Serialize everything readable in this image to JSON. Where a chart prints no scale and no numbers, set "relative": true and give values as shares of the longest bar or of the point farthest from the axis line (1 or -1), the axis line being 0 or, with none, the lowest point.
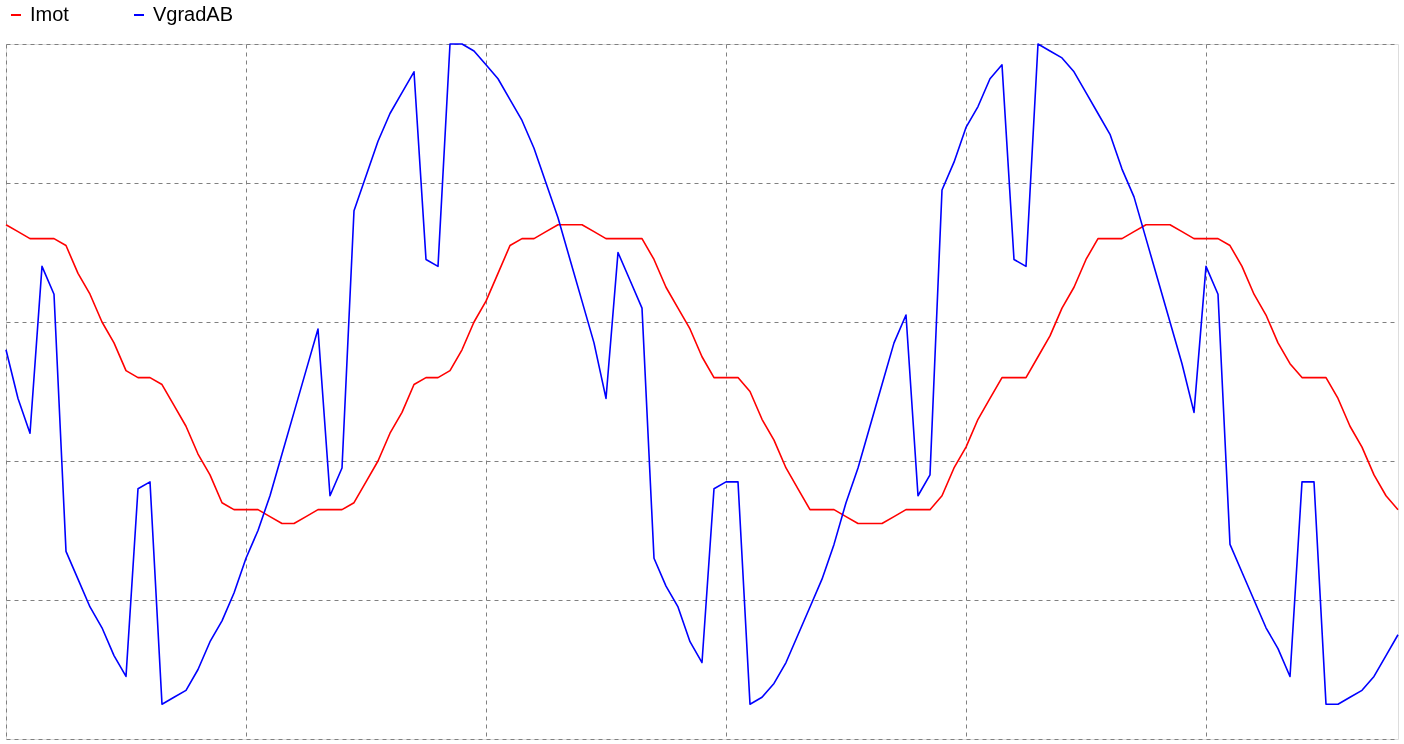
{
  "chart_data": {
    "type": "line",
    "relative": true,
    "grid": true,
    "legend": "top left",
    "tick_labels": false,
    "categories": [
      null,
      null,
      null,
      null,
      null,
      null,
      null,
      null,
      null,
      null,
      null,
      null,
      null,
      null,
      null,
      null,
      null,
      null,
      null,
      null,
      null,
      null,
      null,
      null,
      null,
      null,
      null,
      null,
      null,
      null,
      null,
      null,
      null,
      null,
      null,
      null,
      null,
      null,
      null,
      null,
      null,
      null,
      null,
      null,
      null,
      null,
      null,
      null,
      null,
      null,
      null,
      null,
      null,
      null,
      null,
      null,
      null,
      null,
      null,
      null,
      null,
      null,
      null,
      null,
      null,
      null,
      null,
      null,
      null,
      null,
      null,
      null,
      null,
      null,
      null,
      null,
      null,
      null,
      null,
      null,
      null,
      null,
      null,
      null,
      null,
      null,
      null,
      null,
      null,
      null,
      null,
      null,
      null,
      null,
      null,
      null,
      null,
      null,
      null,
      null,
      null,
      null,
      null,
      null,
      null,
      null,
      null,
      null,
      null,
      null,
      null,
      null,
      null,
      null,
      null,
      null,
      null
    ],
    "series": [
      {
        "name": "Imot",
        "color": "#ff0000",
        "values": [
          0.74,
          0.73,
          0.72,
          0.72,
          0.72,
          0.71,
          0.67,
          0.64,
          0.6,
          0.57,
          0.53,
          0.52,
          0.52,
          0.51,
          0.48,
          0.45,
          0.41,
          0.38,
          0.34,
          0.33,
          0.33,
          0.33,
          0.32,
          0.31,
          0.31,
          0.32,
          0.33,
          0.33,
          0.33,
          0.34,
          0.37,
          0.4,
          0.44,
          0.47,
          0.51,
          0.52,
          0.52,
          0.53,
          0.56,
          0.6,
          0.63,
          0.67,
          0.71,
          0.72,
          0.72,
          0.73,
          0.74,
          0.74,
          0.74,
          0.73,
          0.72,
          0.72,
          0.72,
          0.72,
          0.69,
          0.65,
          0.62,
          0.59,
          0.55,
          0.52,
          0.52,
          0.52,
          0.5,
          0.46,
          0.43,
          0.39,
          0.36,
          0.33,
          0.33,
          0.33,
          0.32,
          0.31,
          0.31,
          0.31,
          0.32,
          0.33,
          0.33,
          0.33,
          0.35,
          0.39,
          0.42,
          0.46,
          0.49,
          0.52,
          0.52,
          0.52,
          0.55,
          0.58,
          0.62,
          0.65,
          0.69,
          0.72,
          0.72,
          0.72,
          0.73,
          0.74,
          0.74,
          0.74,
          0.73,
          0.72,
          0.72,
          0.72,
          0.71,
          0.68,
          0.64,
          0.61,
          0.57,
          0.54,
          0.52,
          0.52,
          0.52,
          0.49,
          0.45,
          0.42,
          0.38,
          0.35,
          0.33
        ]
      },
      {
        "name": "VgradAB",
        "color": "#0000ff",
        "values": [
          0.56,
          0.49,
          0.44,
          0.68,
          0.64,
          0.27,
          0.23,
          0.19,
          0.16,
          0.12,
          0.09,
          0.36,
          0.37,
          0.05,
          0.06,
          0.07,
          0.1,
          0.14,
          0.17,
          0.21,
          0.26,
          0.3,
          0.35,
          0.41,
          0.47,
          0.53,
          0.59,
          0.35,
          0.39,
          0.76,
          0.81,
          0.86,
          0.9,
          0.93,
          0.96,
          0.69,
          0.68,
          1.0,
          1.0,
          0.99,
          0.97,
          0.95,
          0.92,
          0.89,
          0.85,
          0.8,
          0.75,
          0.69,
          0.63,
          0.57,
          0.49,
          0.7,
          0.66,
          0.62,
          0.26,
          0.22,
          0.19,
          0.14,
          0.11,
          0.36,
          0.37,
          0.37,
          0.05,
          0.06,
          0.08,
          0.11,
          0.15,
          0.19,
          0.23,
          0.28,
          0.34,
          0.39,
          0.45,
          0.51,
          0.57,
          0.61,
          0.35,
          0.38,
          0.79,
          0.83,
          0.88,
          0.91,
          0.95,
          0.97,
          0.69,
          0.68,
          1.0,
          0.99,
          0.98,
          0.96,
          0.93,
          0.9,
          0.87,
          0.82,
          0.78,
          0.72,
          0.66,
          0.6,
          0.54,
          0.47,
          0.68,
          0.64,
          0.28,
          0.24,
          0.2,
          0.16,
          0.13,
          0.09,
          0.37,
          0.37,
          0.05,
          0.05,
          0.06,
          0.07,
          0.09,
          0.12,
          0.15
        ]
      }
    ]
  }
}
